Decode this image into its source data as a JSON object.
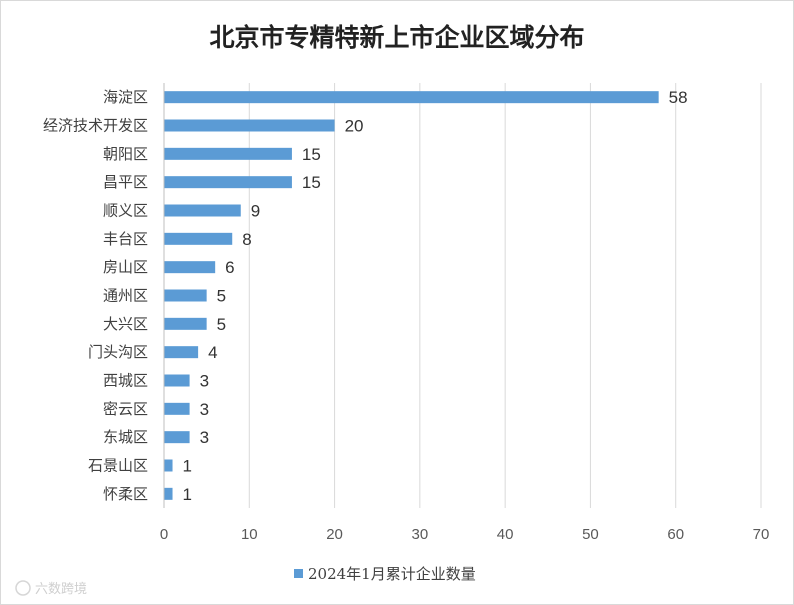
{
  "chart_data": {
    "type": "bar",
    "orientation": "horizontal",
    "title": "北京市专精特新上市企业区域分布",
    "categories": [
      "海淀区",
      "经济技术开发区",
      "朝阳区",
      "昌平区",
      "顺义区",
      "丰台区",
      "房山区",
      "通州区",
      "大兴区",
      "门头沟区",
      "西城区",
      "密云区",
      "东城区",
      "石景山区",
      "怀柔区"
    ],
    "series": [
      {
        "name": "2024年1月累计企业数量",
        "values": [
          58,
          20,
          15,
          15,
          9,
          8,
          6,
          5,
          5,
          4,
          3,
          3,
          3,
          1,
          1
        ],
        "color": "#5b9bd5"
      }
    ],
    "xlim": [
      0,
      70
    ],
    "xticks": [
      0,
      10,
      20,
      30,
      40,
      50,
      60,
      70
    ],
    "grid": true,
    "legend_position": "bottom",
    "data_labels": true
  },
  "watermark": "六数跨境"
}
